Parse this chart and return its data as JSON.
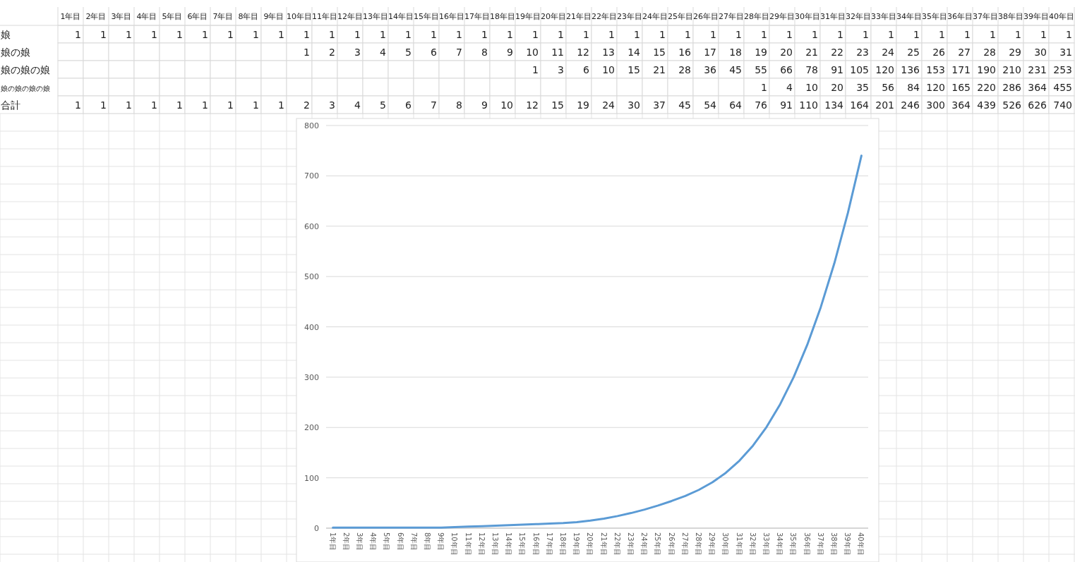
{
  "chart_data": [
    {
      "type": "heatmap",
      "categories": [
        "1年目",
        "2年目",
        "3年目",
        "4年目",
        "5年目",
        "6年目",
        "7年目",
        "8年目",
        "9年目",
        "10年目",
        "11年目",
        "12年目",
        "13年目",
        "14年目",
        "15年目",
        "16年目",
        "17年目",
        "18年目",
        "19年目",
        "20年目",
        "21年目",
        "22年目",
        "23年目",
        "24年目",
        "25年目",
        "26年目",
        "27年目",
        "28年目",
        "29年目",
        "30年目",
        "31年目",
        "32年目",
        "33年目",
        "34年目",
        "35年目",
        "36年目",
        "37年目",
        "38年目",
        "39年目",
        "40年目"
      ],
      "y_categories": [
        "娘",
        "娘の娘",
        "娘の娘の娘",
        "娘の娘の娘の娘",
        "合計"
      ],
      "cells": [
        [
          1,
          1,
          1,
          1,
          1,
          1,
          1,
          1,
          1,
          1,
          1,
          1,
          1,
          1,
          1,
          1,
          1,
          1,
          1,
          1,
          1,
          1,
          1,
          1,
          1,
          1,
          1,
          1,
          1,
          1,
          1,
          1,
          1,
          1,
          1,
          1,
          1,
          1,
          1,
          1
        ],
        [
          null,
          null,
          null,
          null,
          null,
          null,
          null,
          null,
          null,
          1,
          2,
          3,
          4,
          5,
          6,
          7,
          8,
          9,
          10,
          11,
          12,
          13,
          14,
          15,
          16,
          17,
          18,
          19,
          20,
          21,
          22,
          23,
          24,
          25,
          26,
          27,
          28,
          29,
          30,
          31
        ],
        [
          null,
          null,
          null,
          null,
          null,
          null,
          null,
          null,
          null,
          null,
          null,
          null,
          null,
          null,
          null,
          null,
          null,
          null,
          1,
          3,
          6,
          10,
          15,
          21,
          28,
          36,
          45,
          55,
          66,
          78,
          91,
          105,
          120,
          136,
          153,
          171,
          190,
          210,
          231,
          253
        ],
        [
          null,
          null,
          null,
          null,
          null,
          null,
          null,
          null,
          null,
          null,
          null,
          null,
          null,
          null,
          null,
          null,
          null,
          null,
          null,
          null,
          null,
          null,
          null,
          null,
          null,
          null,
          null,
          1,
          4,
          10,
          20,
          35,
          56,
          84,
          120,
          165,
          220,
          286,
          364,
          455
        ],
        [
          1,
          1,
          1,
          1,
          1,
          1,
          1,
          1,
          1,
          2,
          3,
          4,
          5,
          6,
          7,
          8,
          9,
          10,
          12,
          15,
          19,
          24,
          30,
          37,
          45,
          54,
          64,
          76,
          91,
          110,
          134,
          164,
          201,
          246,
          300,
          364,
          439,
          526,
          626,
          740
        ]
      ],
      "data_labels": true
    },
    {
      "type": "line",
      "categories": [
        "1年目",
        "2年目",
        "3年目",
        "4年目",
        "5年目",
        "6年目",
        "7年目",
        "8年目",
        "9年目",
        "10年目",
        "11年目",
        "12年目",
        "13年目",
        "14年目",
        "15年目",
        "16年目",
        "17年目",
        "18年目",
        "19年目",
        "20年目",
        "21年目",
        "22年目",
        "23年目",
        "24年目",
        "25年目",
        "26年目",
        "27年目",
        "28年目",
        "29年目",
        "30年目",
        "31年目",
        "32年目",
        "33年目",
        "34年目",
        "35年目",
        "36年目",
        "37年目",
        "38年目",
        "39年目",
        "40年目"
      ],
      "series": [
        {
          "color": "#5b9bd5",
          "values": [
            1,
            1,
            1,
            1,
            1,
            1,
            1,
            1,
            1,
            2,
            3,
            4,
            5,
            6,
            7,
            8,
            9,
            10,
            12,
            15,
            19,
            24,
            30,
            37,
            45,
            54,
            64,
            76,
            91,
            110,
            134,
            164,
            201,
            246,
            300,
            364,
            439,
            526,
            626,
            740
          ]
        }
      ],
      "ylim": [
        0,
        800
      ],
      "yticks": [
        0,
        100,
        200,
        300,
        400,
        500,
        600,
        700,
        800
      ],
      "grid": "y"
    }
  ]
}
